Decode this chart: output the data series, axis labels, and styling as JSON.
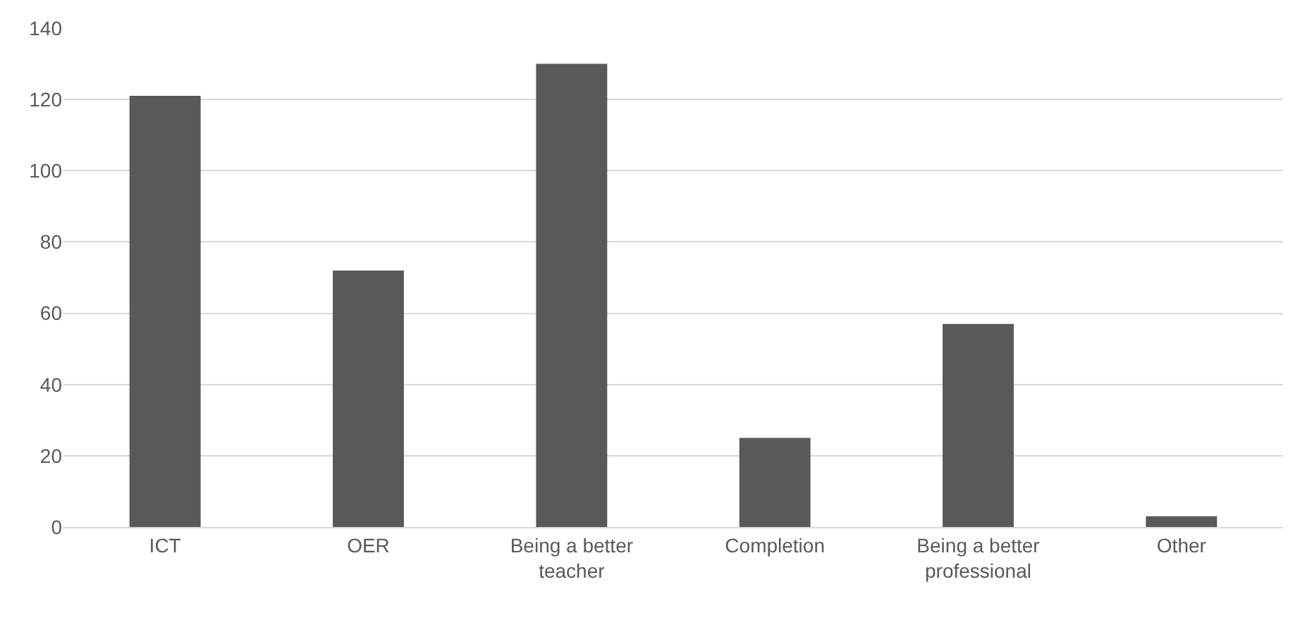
{
  "chart_data": {
    "type": "bar",
    "categories": [
      "ICT",
      "OER",
      "Being a better\nteacher",
      "Completion",
      "Being a better\nprofessional",
      "Other"
    ],
    "values": [
      121,
      72,
      130,
      25,
      57,
      3
    ],
    "color": "#595959",
    "ylim": [
      0,
      140
    ],
    "yticks": [
      0,
      20,
      40,
      60,
      80,
      100,
      120,
      140
    ],
    "grid": "y"
  }
}
